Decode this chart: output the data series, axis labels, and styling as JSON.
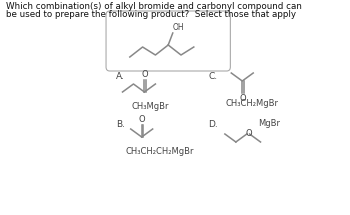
{
  "title_line1": "Which combination(s) of alkyl bromide and carbonyl compound can",
  "title_line2": "be used to prepare the following product?  Select those that apply",
  "bg_color": "#ffffff",
  "label_A": "A.",
  "label_B": "B.",
  "label_C": "C.",
  "label_D": "D.",
  "text_A": "CH₃MgBr",
  "text_B": "CH₃CH₂CH₂MgBr",
  "text_C": "CH₃CH₂MgBr",
  "text_D": "MgBr",
  "mol_color": "#888888",
  "text_color": "#444444",
  "box_color": "#bbbbbb"
}
